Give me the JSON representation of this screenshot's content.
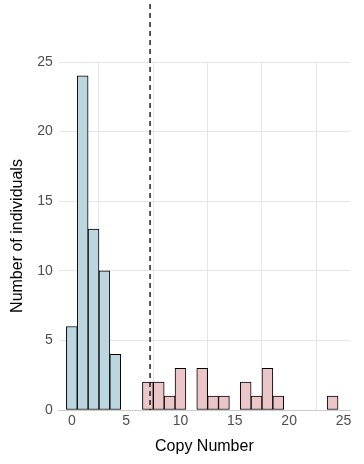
{
  "chart_data": {
    "type": "histogram",
    "x_label": "Copy Number",
    "y_label": "Number of individuals",
    "bins": [
      -0.5,
      0.5,
      1.5,
      2.5,
      3.5,
      4.5,
      5.5,
      6.5,
      7.5,
      8.5,
      9.5,
      10.5,
      11.5,
      12.5,
      13.5,
      14.5,
      15.5,
      16.5,
      17.5,
      18.5,
      19.5,
      20.5,
      21.5,
      22.5,
      23.5,
      24.5
    ],
    "counts": [
      6,
      24,
      13,
      10,
      4,
      0,
      0,
      2,
      2,
      1,
      3,
      0,
      3,
      1,
      1,
      0,
      2,
      1,
      3,
      1,
      0,
      0,
      0,
      0,
      1
    ],
    "colors": [
      "#bcd6df",
      "#bcd6df",
      "#bcd6df",
      "#bcd6df",
      "#bcd6df",
      "#bcd6df",
      "#bcd6df",
      "#ebc6c8",
      "#ebc6c8",
      "#ebc6c8",
      "#ebc6c8",
      "#ebc6c8",
      "#ebc6c8",
      "#ebc6c8",
      "#ebc6c8",
      "#ebc6c8",
      "#ebc6c8",
      "#ebc6c8",
      "#ebc6c8",
      "#ebc6c8",
      "#ebc6c8",
      "#ebc6c8",
      "#ebc6c8",
      "#ebc6c8",
      "#ebc6c8"
    ],
    "xlim": [
      -1.2,
      25.6
    ],
    "xticks": [
      0,
      5,
      10,
      15,
      20,
      25
    ],
    "ylim": [
      0,
      25
    ],
    "yticks": [
      0,
      5,
      10,
      15,
      20,
      25
    ],
    "grid": true,
    "reference_line": {
      "x": 7.2,
      "line_style": "dashed"
    }
  }
}
